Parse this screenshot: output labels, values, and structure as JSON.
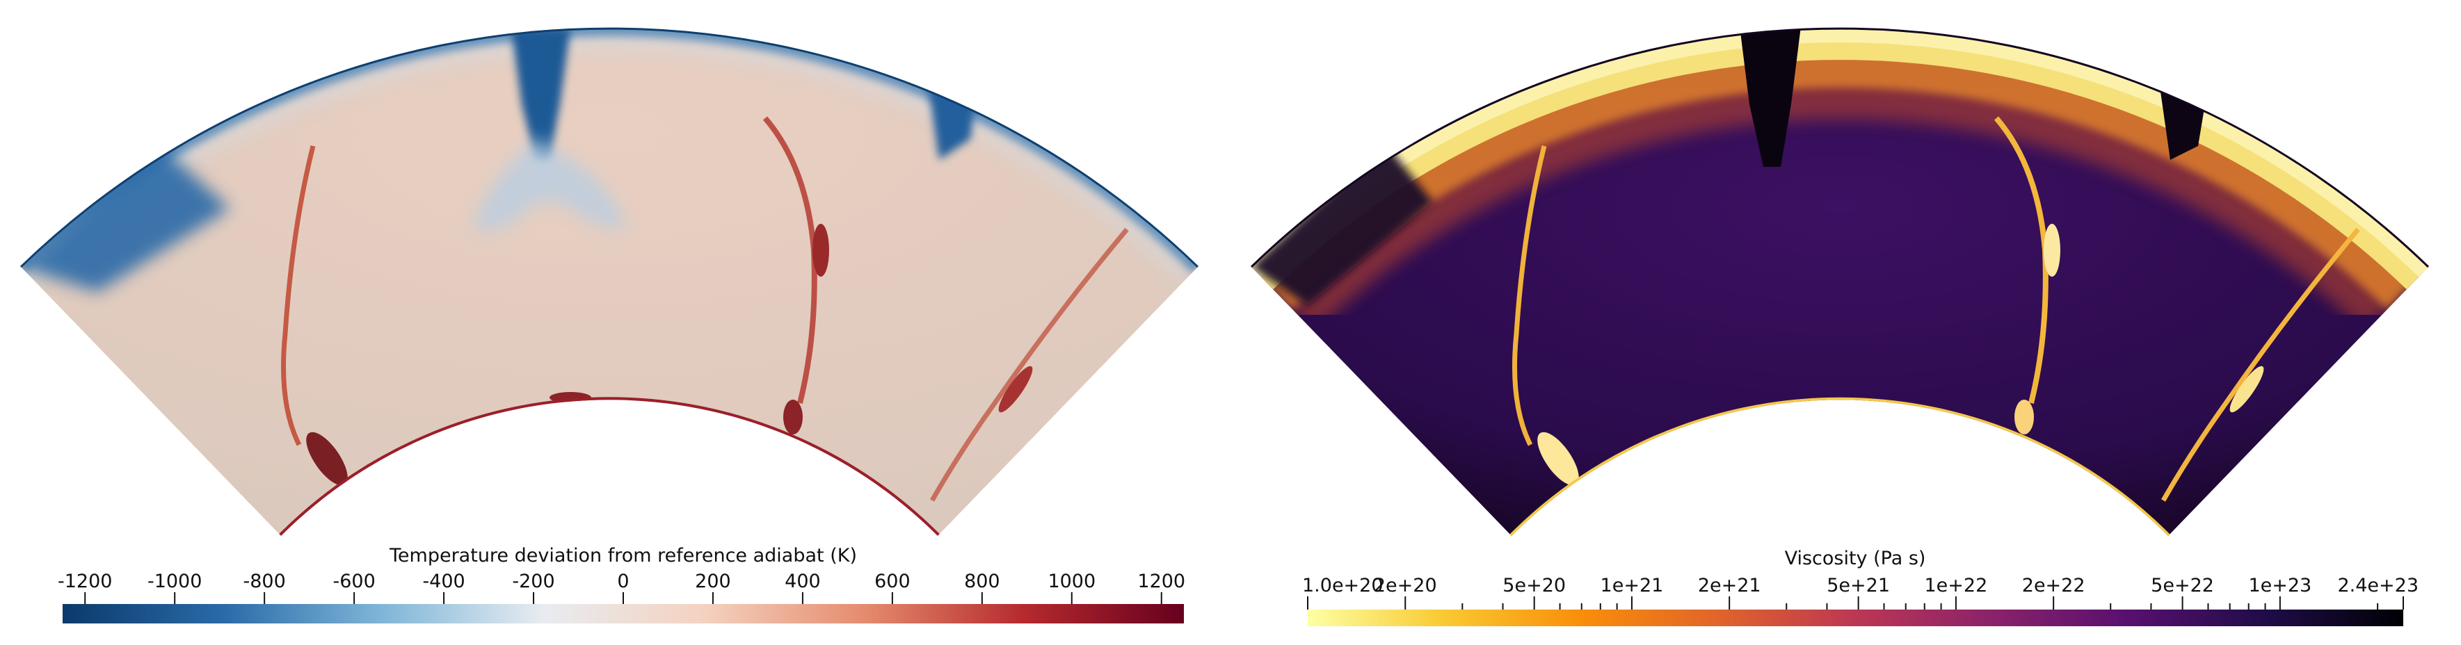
{
  "panels": [
    {
      "id": "temperature",
      "colorbar": {
        "title": "Temperature deviation from reference adiabat (K)",
        "tick_labels": [
          "-1200",
          "-1000",
          "-800",
          "-600",
          "-400",
          "-200",
          "0",
          "200",
          "400",
          "600",
          "800",
          "1000",
          "1200"
        ],
        "tick_values": [
          -1200,
          -1000,
          -800,
          -600,
          -400,
          -200,
          0,
          200,
          400,
          600,
          800,
          1000,
          1200
        ],
        "range": [
          -1250,
          1250
        ],
        "scale": "linear",
        "colormap": "diverging blue-white-red",
        "colors": [
          "#0b3a6b",
          "#2a6aa8",
          "#80b6d8",
          "#e8ecf0",
          "#f4d2c0",
          "#e58c6e",
          "#b52a2e",
          "#67001f"
        ]
      }
    },
    {
      "id": "viscosity",
      "colorbar": {
        "title": "Viscosity (Pa s)",
        "tick_labels": [
          "1.0e+20",
          "2e+20",
          "5e+20",
          "1e+21",
          "2e+21",
          "5e+21",
          "1e+22",
          "2e+22",
          "5e+22",
          "1e+23",
          "2.4e+23"
        ],
        "tick_values": [
          1e+20,
          2e+20,
          5e+20,
          1e+21,
          2e+21,
          5e+21,
          1e+22,
          2e+22,
          5e+22,
          1e+23,
          2.4e+23
        ],
        "range": [
          1e+20,
          2.4e+23
        ],
        "scale": "log",
        "colormap": "inferno (reversed)",
        "colors": [
          "#fcffa4",
          "#f9c932",
          "#f98e09",
          "#e1642a",
          "#bc3754",
          "#8a226a",
          "#57106e",
          "#1f0c48",
          "#000004"
        ]
      }
    }
  ]
}
